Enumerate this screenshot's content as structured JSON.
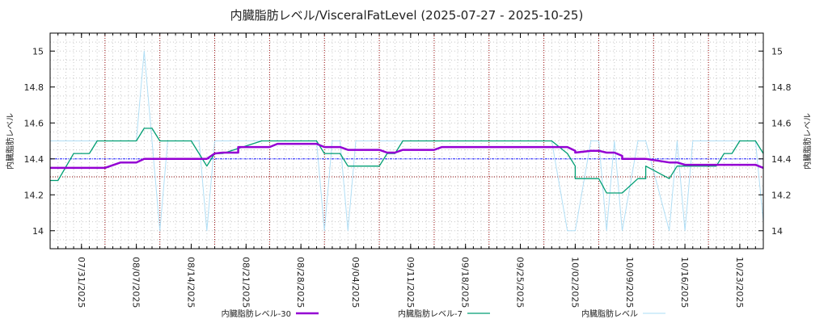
{
  "chart_data": {
    "type": "line",
    "title": "内臓脂肪レベル/VisceralFatLevel (2025-07-27 - 2025-10-25)",
    "ylabel": "内臓脂肪レベル",
    "y2label": "内臓脂肪レベル",
    "xlabel": "",
    "xlim": [
      "2025-07-27",
      "2025-10-26"
    ],
    "ylim": [
      13.9,
      15.1
    ],
    "yticks": [
      14,
      14.2,
      14.4,
      14.6,
      14.8,
      15
    ],
    "ytick_labels": [
      "14",
      "14.2",
      "14.4",
      "14.6",
      "14.8",
      "15"
    ],
    "y_minor_step": 0.05,
    "xticks": [
      "2025-07-31",
      "2025-08-07",
      "2025-08-14",
      "2025-08-21",
      "2025-08-28",
      "2025-09-04",
      "2025-09-11",
      "2025-09-18",
      "2025-09-25",
      "2025-10-02",
      "2025-10-09",
      "2025-10-16",
      "2025-10-23"
    ],
    "xtick_labels": [
      "07/31/2025",
      "08/07/2025",
      "08/14/2025",
      "08/21/2025",
      "08/28/2025",
      "09/04/2025",
      "09/11/2025",
      "09/18/2025",
      "09/25/2025",
      "10/02/2025",
      "10/09/2025",
      "10/16/2025",
      "10/23/2025"
    ],
    "grid": true,
    "legend_position": "bottom",
    "reference_lines": [
      {
        "y": 14.4,
        "color": "#1a1aff",
        "style": "dash-dot"
      },
      {
        "y": 14.3,
        "color": "#8b0000",
        "style": "dotted"
      }
    ],
    "week_lines": {
      "color": "#a01010",
      "dates": [
        "2025-08-03",
        "2025-08-10",
        "2025-08-17",
        "2025-08-24",
        "2025-08-31",
        "2025-09-07",
        "2025-09-14",
        "2025-09-21",
        "2025-09-28",
        "2025-10-05",
        "2025-10-12",
        "2025-10-19"
      ]
    },
    "series": [
      {
        "name": "内臓脂肪レベル-30",
        "color": "#9400d3",
        "width": 2.5,
        "opacity": 1,
        "points": [
          [
            "2025-07-27",
            14.35
          ],
          [
            "2025-08-03",
            14.35
          ],
          [
            "2025-08-05",
            14.38
          ],
          [
            "2025-08-07",
            14.38
          ],
          [
            "2025-08-08",
            14.4
          ],
          [
            "2025-08-16",
            14.4
          ],
          [
            "2025-08-17",
            14.43
          ],
          [
            "2025-08-18",
            14.435
          ],
          [
            "2025-08-20",
            14.435
          ],
          [
            "2025-08-20",
            14.466
          ],
          [
            "2025-08-24",
            14.466
          ],
          [
            "2025-08-25",
            14.484
          ],
          [
            "2025-08-30",
            14.484
          ],
          [
            "2025-08-31",
            14.466
          ],
          [
            "2025-09-02",
            14.466
          ],
          [
            "2025-09-03",
            14.45
          ],
          [
            "2025-09-07",
            14.45
          ],
          [
            "2025-09-08",
            14.435
          ],
          [
            "2025-09-09",
            14.435
          ],
          [
            "2025-09-10",
            14.45
          ],
          [
            "2025-09-14",
            14.45
          ],
          [
            "2025-09-15",
            14.466
          ],
          [
            "2025-10-01",
            14.466
          ],
          [
            "2025-10-02",
            14.445
          ],
          [
            "2025-10-02",
            14.435
          ],
          [
            "2025-10-04",
            14.445
          ],
          [
            "2025-10-05",
            14.445
          ],
          [
            "2025-10-06",
            14.435
          ],
          [
            "2025-10-07",
            14.435
          ],
          [
            "2025-10-08",
            14.417
          ],
          [
            "2025-10-08",
            14.4
          ],
          [
            "2025-10-11",
            14.4
          ],
          [
            "2025-10-14",
            14.38
          ],
          [
            "2025-10-15",
            14.38
          ],
          [
            "2025-10-16",
            14.367
          ],
          [
            "2025-10-25",
            14.367
          ],
          [
            "2025-10-26",
            14.35
          ]
        ]
      },
      {
        "name": "内臓脂肪レベル-7",
        "color": "#009e73",
        "width": 1.3,
        "opacity": 1,
        "points": [
          [
            "2025-07-27",
            14.28
          ],
          [
            "2025-07-28",
            14.28
          ],
          [
            "2025-07-30",
            14.43
          ],
          [
            "2025-08-01",
            14.43
          ],
          [
            "2025-08-02",
            14.5
          ],
          [
            "2025-08-07",
            14.5
          ],
          [
            "2025-08-08",
            14.57
          ],
          [
            "2025-08-09",
            14.57
          ],
          [
            "2025-08-10",
            14.5
          ],
          [
            "2025-08-14",
            14.5
          ],
          [
            "2025-08-16",
            14.36
          ],
          [
            "2025-08-17",
            14.43
          ],
          [
            "2025-08-18",
            14.43
          ],
          [
            "2025-08-23",
            14.5
          ],
          [
            "2025-08-30",
            14.5
          ],
          [
            "2025-08-31",
            14.43
          ],
          [
            "2025-09-02",
            14.43
          ],
          [
            "2025-09-03",
            14.36
          ],
          [
            "2025-09-07",
            14.36
          ],
          [
            "2025-09-08",
            14.43
          ],
          [
            "2025-09-09",
            14.43
          ],
          [
            "2025-09-10",
            14.5
          ],
          [
            "2025-09-29",
            14.5
          ],
          [
            "2025-10-01",
            14.43
          ],
          [
            "2025-10-02",
            14.36
          ],
          [
            "2025-10-02",
            14.29
          ],
          [
            "2025-10-05",
            14.29
          ],
          [
            "2025-10-06",
            14.21
          ],
          [
            "2025-10-08",
            14.21
          ],
          [
            "2025-10-10",
            14.29
          ],
          [
            "2025-10-11",
            14.29
          ],
          [
            "2025-10-11",
            14.36
          ],
          [
            "2025-10-14",
            14.29
          ],
          [
            "2025-10-15",
            14.36
          ],
          [
            "2025-10-20",
            14.36
          ],
          [
            "2025-10-21",
            14.43
          ],
          [
            "2025-10-22",
            14.43
          ],
          [
            "2025-10-23",
            14.5
          ],
          [
            "2025-10-25",
            14.5
          ],
          [
            "2025-10-26",
            14.43
          ]
        ]
      },
      {
        "name": "内臓脂肪レベル",
        "color": "#a8dcf5",
        "width": 1,
        "opacity": 0.9,
        "points": [
          [
            "2025-07-27",
            14.5
          ],
          [
            "2025-08-07",
            14.5
          ],
          [
            "2025-08-08",
            15
          ],
          [
            "2025-08-10",
            14
          ],
          [
            "2025-08-11",
            14.5
          ],
          [
            "2025-08-15",
            14.5
          ],
          [
            "2025-08-16",
            14
          ],
          [
            "2025-08-17",
            14.5
          ],
          [
            "2025-08-30",
            14.5
          ],
          [
            "2025-08-31",
            14
          ],
          [
            "2025-09-01",
            14.5
          ],
          [
            "2025-09-02",
            14.5
          ],
          [
            "2025-09-03",
            14
          ],
          [
            "2025-09-04",
            14.5
          ],
          [
            "2025-09-29",
            14.5
          ],
          [
            "2025-10-01",
            14
          ],
          [
            "2025-10-02",
            14
          ],
          [
            "2025-10-04",
            14.5
          ],
          [
            "2025-10-05",
            14.5
          ],
          [
            "2025-10-06",
            14
          ],
          [
            "2025-10-07",
            14.5
          ],
          [
            "2025-10-08",
            14
          ],
          [
            "2025-10-10",
            14.5
          ],
          [
            "2025-10-11",
            14.5
          ],
          [
            "2025-10-14",
            14
          ],
          [
            "2025-10-15",
            14.5
          ],
          [
            "2025-10-16",
            14
          ],
          [
            "2025-10-17",
            14.5
          ],
          [
            "2025-10-25",
            14.5
          ],
          [
            "2025-10-26",
            14.05
          ]
        ]
      }
    ]
  }
}
